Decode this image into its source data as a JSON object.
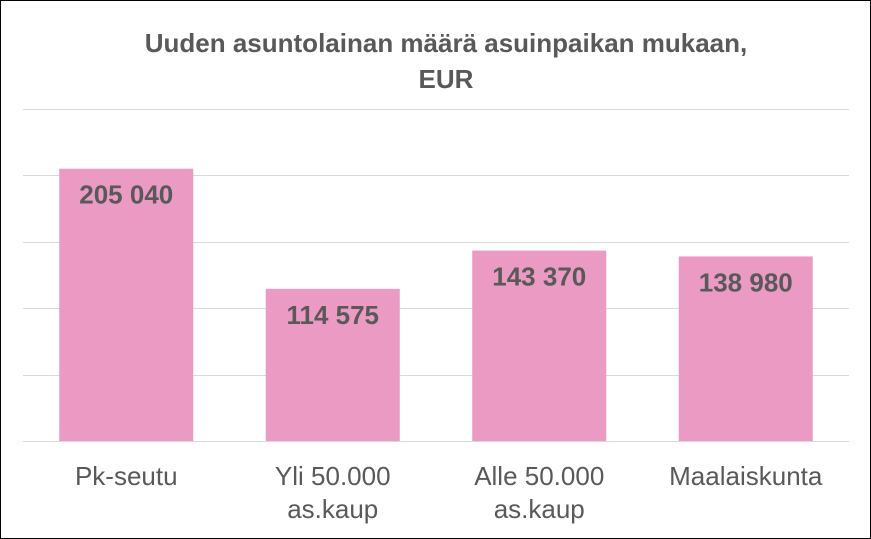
{
  "chart_data": {
    "type": "bar",
    "title_lines": [
      "Uuden asuntolainan määrä asuinpaikan mukaan,",
      "EUR"
    ],
    "categories": [
      [
        "Pk-seutu"
      ],
      [
        "Yli 50.000",
        "as.kaup"
      ],
      [
        "Alle 50.000",
        "as.kaup"
      ],
      [
        "Maalaiskunta"
      ]
    ],
    "values": [
      205040,
      114575,
      143370,
      138980
    ],
    "value_labels": [
      "205 040",
      "114 575",
      "143 370",
      "138 980"
    ],
    "ylim": [
      0,
      250000
    ],
    "y_gridline_step": 50000,
    "y_tick_labels_shown": false,
    "grid": true,
    "legend": "none",
    "bar_color": "#EA9AC3",
    "grid_color": "#D9D9D9",
    "label_color": "#595959"
  }
}
